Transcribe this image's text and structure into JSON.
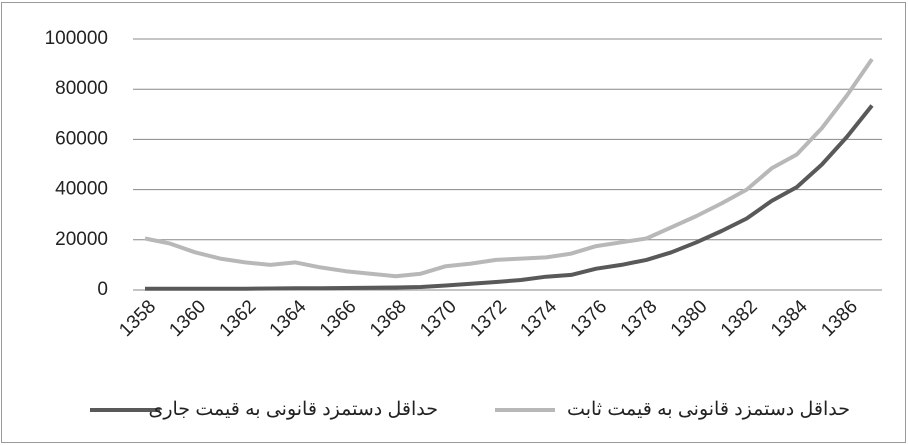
{
  "chart_data": {
    "type": "line",
    "categories": [
      "1358",
      null,
      "1360",
      null,
      "1362",
      null,
      "1364",
      null,
      "1366",
      null,
      "1368",
      null,
      "1370",
      null,
      "1372",
      null,
      "1374",
      null,
      "1376",
      null,
      "1378",
      null,
      "1380",
      null,
      "1382",
      null,
      "1384",
      null,
      "1386",
      null
    ],
    "series": [
      {
        "name": "حداقل دستمزد قانونی به قیمت جاری",
        "color": "#595959",
        "values": [
          500,
          500,
          500,
          500,
          500,
          600,
          700,
          700,
          800,
          900,
          1000,
          1200,
          1800,
          2500,
          3200,
          4000,
          5300,
          6000,
          8500,
          10000,
          12000,
          15000,
          19000,
          23500,
          28500,
          35500,
          41000,
          50000,
          61000,
          73500
        ]
      },
      {
        "name": "حداقل دستمزد قانونی به قیمت ثابت",
        "color": "#b8b8b8",
        "values": [
          20500,
          18500,
          15000,
          12500,
          11000,
          10000,
          11000,
          9000,
          7500,
          6500,
          5500,
          6500,
          9500,
          10500,
          12000,
          12500,
          13000,
          14500,
          17500,
          19000,
          20500,
          25000,
          29500,
          34500,
          40000,
          48500,
          54000,
          64500,
          77500,
          92000
        ]
      }
    ],
    "ylim": [
      0,
      100000
    ],
    "yticks": [
      0,
      20000,
      40000,
      60000,
      80000,
      100000
    ],
    "grid": true
  }
}
